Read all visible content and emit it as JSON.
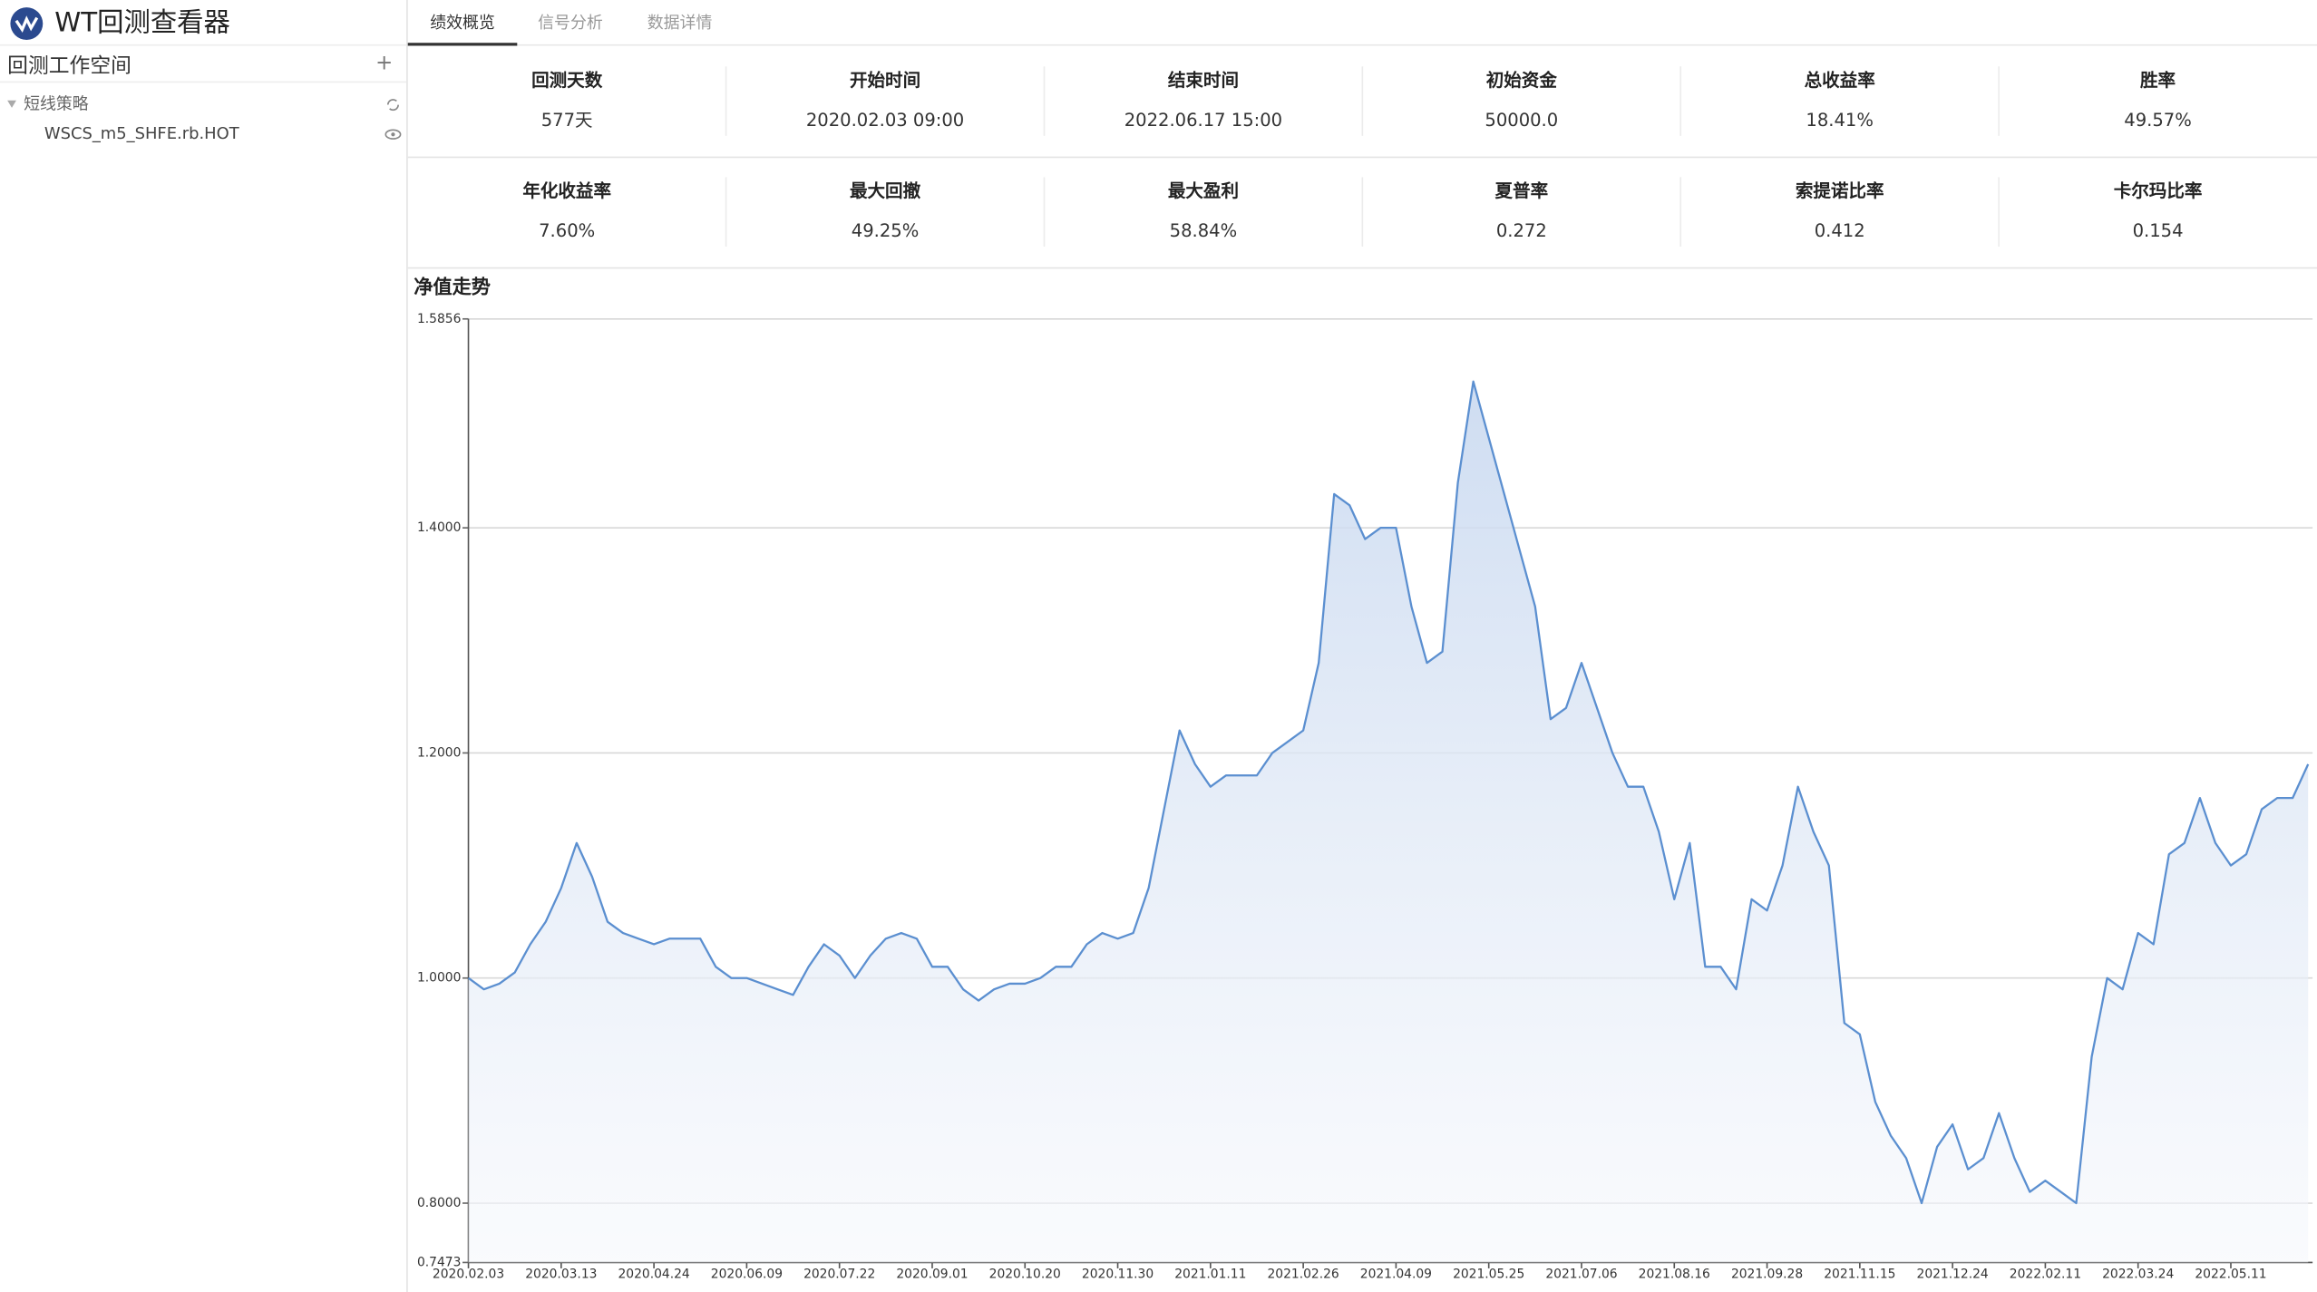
{
  "app": {
    "title": "WT回测查看器",
    "workspace": "回测工作空间",
    "group": "短线策略",
    "strategy": "WSCS_m5_SHFE.rb.HOT"
  },
  "tabs": [
    "绩效概览",
    "信号分析",
    "数据详情"
  ],
  "stats": [
    {
      "label": "回测天数",
      "value": "577天"
    },
    {
      "label": "开始时间",
      "value": "2020.02.03 09:00"
    },
    {
      "label": "结束时间",
      "value": "2022.06.17 15:00"
    },
    {
      "label": "初始资金",
      "value": "50000.0"
    },
    {
      "label": "总收益率",
      "value": "18.41%"
    },
    {
      "label": "胜率",
      "value": "49.57%"
    },
    {
      "label": "年化收益率",
      "value": "7.60%"
    },
    {
      "label": "最大回撤",
      "value": "49.25%"
    },
    {
      "label": "最大盈利",
      "value": "58.84%"
    },
    {
      "label": "夏普率",
      "value": "0.272"
    },
    {
      "label": "索提诺比率",
      "value": "0.412"
    },
    {
      "label": "卡尔玛比率",
      "value": "0.154"
    }
  ],
  "chart_data": {
    "type": "line",
    "title": "净值走势",
    "color": "#5b8fd0",
    "categories": [
      "2020.02.03",
      null,
      null,
      null,
      null,
      null,
      "2020.03.13",
      null,
      null,
      null,
      null,
      null,
      "2020.04.24",
      null,
      null,
      null,
      null,
      null,
      "2020.06.09",
      null,
      null,
      null,
      null,
      null,
      "2020.07.22",
      null,
      null,
      null,
      null,
      null,
      "2020.09.01",
      null,
      null,
      null,
      null,
      null,
      "2020.10.20",
      null,
      null,
      null,
      null,
      null,
      "2020.11.30",
      null,
      null,
      null,
      null,
      null,
      "2021.01.11",
      null,
      null,
      null,
      null,
      null,
      "2021.02.26",
      null,
      null,
      null,
      null,
      null,
      "2021.04.09",
      null,
      null,
      null,
      null,
      null,
      "2021.05.25",
      null,
      null,
      null,
      null,
      null,
      "2021.07.06",
      null,
      null,
      null,
      null,
      null,
      "2021.08.16",
      null,
      null,
      null,
      null,
      null,
      "2021.09.28",
      null,
      null,
      null,
      null,
      null,
      "2021.11.15",
      null,
      null,
      null,
      null,
      null,
      "2021.12.24",
      null,
      null,
      null,
      null,
      null,
      "2022.02.11",
      null,
      null,
      null,
      null,
      null,
      "2022.03.24",
      null,
      null,
      null,
      null,
      null,
      "2022.05.11",
      null,
      null,
      null,
      null,
      null
    ],
    "values": [
      1.0,
      0.99,
      0.995,
      1.005,
      1.03,
      1.05,
      1.08,
      1.12,
      1.09,
      1.05,
      1.04,
      1.035,
      1.03,
      1.035,
      1.035,
      1.035,
      1.01,
      1.0,
      1.0,
      0.995,
      0.99,
      0.985,
      1.01,
      1.03,
      1.02,
      1.0,
      1.02,
      1.035,
      1.04,
      1.035,
      1.01,
      1.01,
      0.99,
      0.98,
      0.99,
      0.995,
      0.995,
      1.0,
      1.01,
      1.01,
      1.03,
      1.04,
      1.035,
      1.04,
      1.08,
      1.15,
      1.22,
      1.19,
      1.17,
      1.18,
      1.18,
      1.18,
      1.2,
      1.21,
      1.22,
      1.28,
      1.43,
      1.42,
      1.39,
      1.4,
      1.4,
      1.33,
      1.28,
      1.29,
      1.44,
      1.53,
      1.48,
      1.43,
      1.38,
      1.33,
      1.23,
      1.24,
      1.28,
      1.24,
      1.2,
      1.17,
      1.17,
      1.13,
      1.07,
      1.12,
      1.01,
      1.01,
      0.99,
      1.07,
      1.06,
      1.1,
      1.17,
      1.13,
      1.1,
      0.96,
      0.95,
      0.89,
      0.86,
      0.84,
      0.8,
      0.85,
      0.87,
      0.83,
      0.84,
      0.88,
      0.84,
      0.81,
      0.82,
      0.81,
      0.8,
      0.93,
      1.0,
      0.99,
      1.04,
      1.03,
      1.11,
      1.12,
      1.16,
      1.12,
      1.1,
      1.11,
      1.15,
      1.16,
      1.16,
      1.19
    ],
    "ylim": [
      0.7473,
      1.5856
    ],
    "yticks": [
      0.7473,
      {
        "value": 0.8,
        "label": "0.8000"
      },
      {
        "value": 1.0,
        "label": "1.0000"
      },
      {
        "value": 1.2,
        "label": "1.2000"
      },
      {
        "value": 1.4,
        "label": "1.4000"
      },
      1.5856
    ],
    "grid": true
  }
}
